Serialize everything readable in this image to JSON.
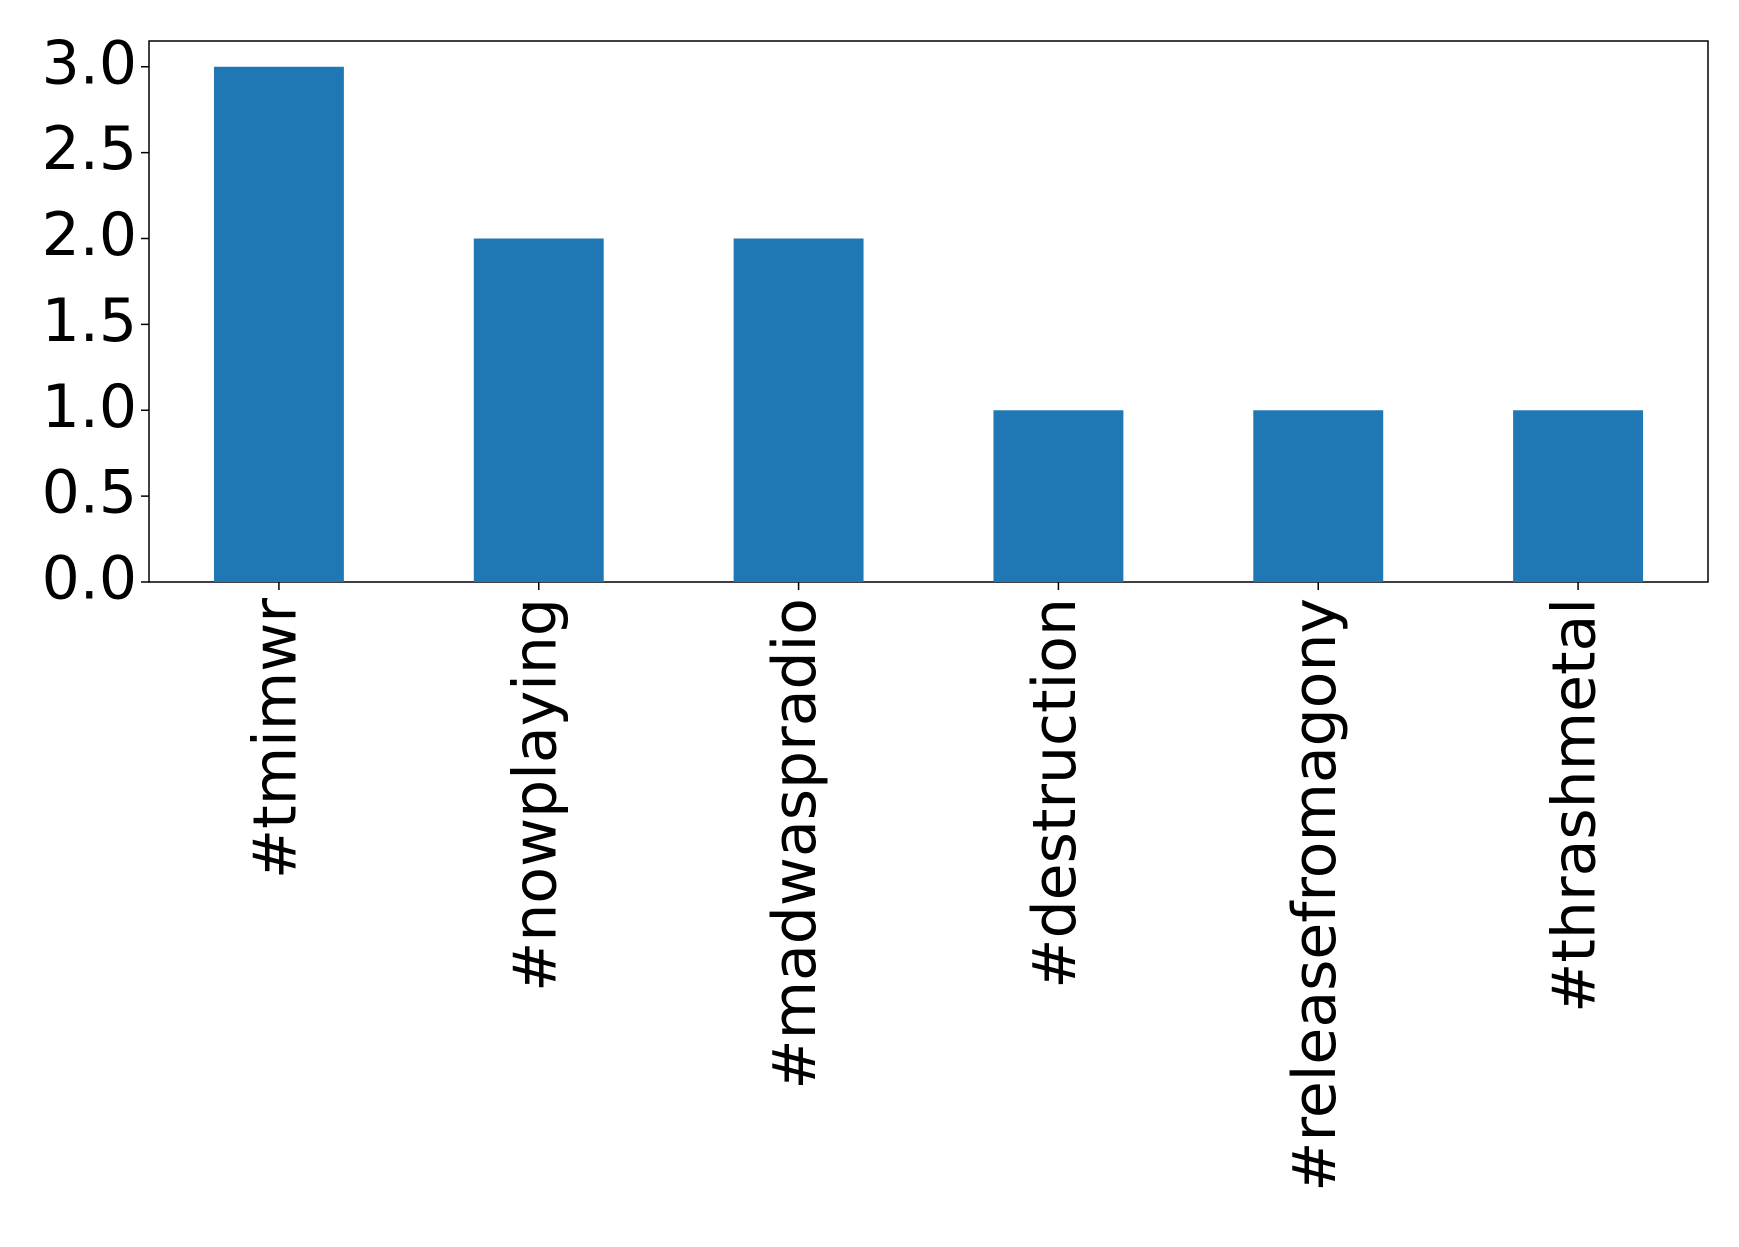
{
  "chart_data": {
    "type": "bar",
    "categories": [
      "#tmimwr",
      "#nowplaying",
      "#madwaspradio",
      "#destruction",
      "#releasefromagony",
      "#thrashmetal"
    ],
    "values": [
      3,
      2,
      2,
      1,
      1,
      1
    ],
    "color": "#1f77b4",
    "ylim": [
      0,
      3.15
    ],
    "yticks": [
      {
        "value": 0,
        "label": "0.0"
      },
      {
        "value": 0.5,
        "label": "0.5"
      },
      {
        "value": 1,
        "label": "1.0"
      },
      {
        "value": 1.5,
        "label": "1.5"
      },
      {
        "value": 2,
        "label": "2.0"
      },
      {
        "value": 2.5,
        "label": "2.5"
      },
      {
        "value": 3,
        "label": "3.0"
      }
    ],
    "grid": false
  }
}
